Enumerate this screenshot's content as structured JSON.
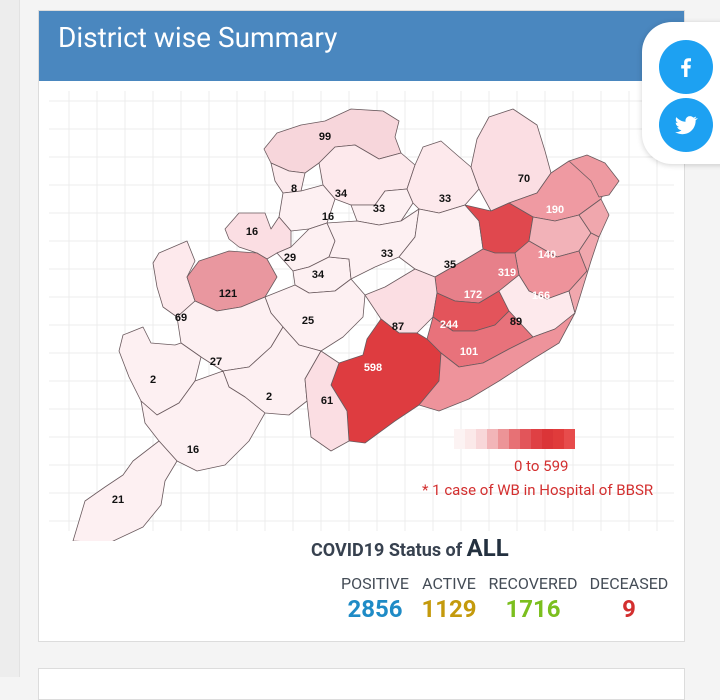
{
  "header": {
    "title": "District wise Summary"
  },
  "share": {
    "facebook_icon": "facebook-icon",
    "twitter_icon": "twitter-icon",
    "color": "#1da1f2"
  },
  "map": {
    "district_values": [
      "99",
      "8",
      "34",
      "16",
      "33",
      "33",
      "70",
      "190",
      "16",
      "29",
      "34",
      "33",
      "35",
      "319",
      "140",
      "121",
      "166",
      "172",
      "69",
      "25",
      "87",
      "244",
      "89",
      "101",
      "598",
      "27",
      "2",
      "2",
      "61",
      "16",
      "21"
    ],
    "legend_range": "0 to 599",
    "legend_note": "* 1 case of WB in Hospital of BBSR",
    "legend_colors": [
      "#fcf3f3",
      "#fbe9e9",
      "#f8d7d9",
      "#f2b5b8",
      "#ec9497",
      "#e77175",
      "#e2555a",
      "#df4044",
      "#db3538",
      "#e03b3b",
      "#e74c4c"
    ]
  },
  "status": {
    "title_prefix": "COVID19 Status of",
    "scope": "ALL",
    "positive_label": "POSITIVE",
    "positive_value": "2856",
    "active_label": "ACTIVE",
    "active_value": "1129",
    "recovered_label": "RECOVERED",
    "recovered_value": "1716",
    "deceased_label": "DECEASED",
    "deceased_value": "9",
    "colors": {
      "positive": "#1f8bc6",
      "active": "#c49a0c",
      "recovered": "#7bbf1e",
      "deceased": "#d32f2f"
    }
  }
}
